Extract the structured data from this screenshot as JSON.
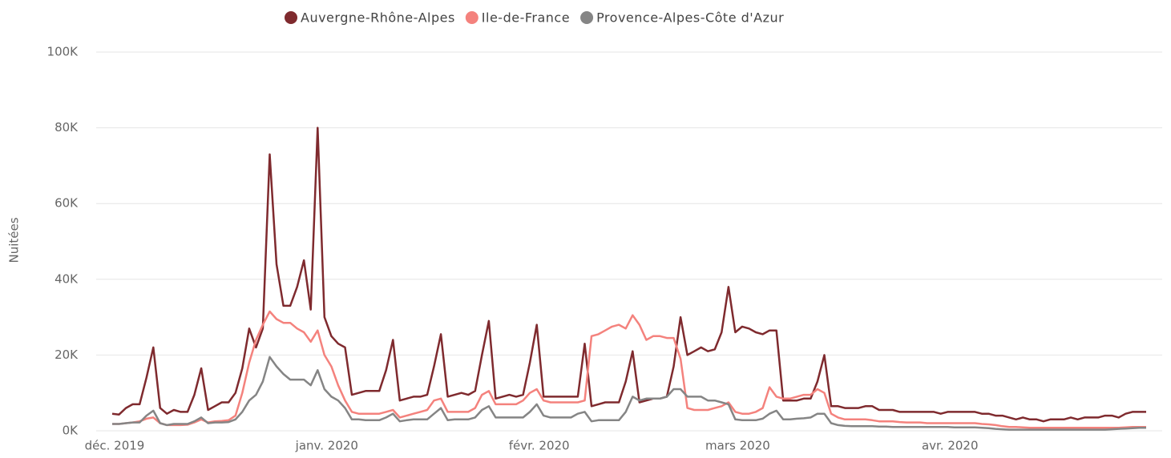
{
  "chart_data": {
    "type": "line",
    "y_label": "Nuitées",
    "categories": [
      "déc. 2019",
      null,
      null,
      null,
      null,
      null,
      null,
      null,
      null,
      null,
      null,
      null,
      null,
      null,
      null,
      null,
      null,
      null,
      null,
      null,
      null,
      null,
      null,
      null,
      null,
      null,
      null,
      null,
      null,
      null,
      null,
      "janv. 2020",
      null,
      null,
      null,
      null,
      null,
      null,
      null,
      null,
      null,
      null,
      null,
      null,
      null,
      null,
      null,
      null,
      null,
      null,
      null,
      null,
      null,
      null,
      null,
      null,
      null,
      null,
      null,
      null,
      null,
      null,
      "févr. 2020",
      null,
      null,
      null,
      null,
      null,
      null,
      null,
      null,
      null,
      null,
      null,
      null,
      null,
      null,
      null,
      null,
      null,
      null,
      null,
      null,
      null,
      null,
      null,
      null,
      null,
      null,
      null,
      null,
      "mars 2020",
      null,
      null,
      null,
      null,
      null,
      null,
      null,
      null,
      null,
      null,
      null,
      null,
      null,
      null,
      null,
      null,
      null,
      null,
      null,
      null,
      null,
      null,
      null,
      null,
      null,
      null,
      null,
      null,
      null,
      null,
      "avr. 2020",
      null,
      null,
      null,
      null,
      null,
      null,
      null,
      null,
      null,
      null,
      null,
      null,
      null,
      null,
      null,
      null,
      null,
      null,
      null,
      null,
      null,
      null,
      null,
      null,
      null,
      null,
      null,
      null,
      null
    ],
    "series": [
      {
        "name": "Auvergne-Rhône-Alpes",
        "color": "#7f2a2e",
        "values": [
          4500,
          4300,
          6000,
          7000,
          7000,
          14000,
          22000,
          6000,
          4500,
          5500,
          5000,
          5000,
          9500,
          16500,
          5500,
          6500,
          7500,
          7500,
          10000,
          16500,
          27000,
          22000,
          27000,
          73000,
          44000,
          33000,
          33000,
          38000,
          45000,
          32000,
          80000,
          30000,
          25000,
          23000,
          22000,
          9500,
          10000,
          10500,
          10500,
          10500,
          16000,
          24000,
          8000,
          8500,
          9000,
          9000,
          9500,
          17000,
          25500,
          9000,
          9500,
          10000,
          9500,
          10500,
          20000,
          29000,
          8500,
          9000,
          9500,
          9000,
          9500,
          18000,
          28000,
          9000,
          9000,
          9000,
          9000,
          9000,
          9000,
          23000,
          6500,
          7000,
          7500,
          7500,
          7500,
          13000,
          21000,
          7500,
          8000,
          8500,
          8500,
          9000,
          17000,
          30000,
          20000,
          21000,
          22000,
          21000,
          21500,
          26000,
          38000,
          26000,
          27500,
          27000,
          26000,
          25500,
          26500,
          26500,
          8000,
          8000,
          8000,
          8500,
          8500,
          13000,
          20000,
          6500,
          6500,
          6000,
          6000,
          6000,
          6500,
          6500,
          5500,
          5500,
          5500,
          5000,
          5000,
          5000,
          5000,
          5000,
          5000,
          4500,
          5000,
          5000,
          5000,
          5000,
          5000,
          4500,
          4500,
          4000,
          4000,
          3500,
          3000,
          3500,
          3000,
          3000,
          2500,
          3000,
          3000,
          3000,
          3500,
          3000,
          3500,
          3500,
          3500,
          4000,
          4000,
          3500,
          4500,
          5000,
          5000,
          5000
        ]
      },
      {
        "name": "Ile-de-France",
        "color": "#f4827d",
        "values": [
          1800,
          1800,
          2000,
          2200,
          2500,
          3200,
          3500,
          2000,
          1500,
          1500,
          1500,
          1600,
          2200,
          3000,
          2200,
          2500,
          2600,
          2800,
          4000,
          10000,
          18000,
          24000,
          28000,
          31500,
          29500,
          28500,
          28500,
          27000,
          26000,
          23500,
          26500,
          20000,
          17000,
          12000,
          8000,
          5000,
          4500,
          4500,
          4500,
          4500,
          5000,
          5500,
          3500,
          4000,
          4500,
          5000,
          5500,
          8000,
          8500,
          5000,
          5000,
          5000,
          5000,
          6000,
          9500,
          10500,
          7000,
          7000,
          7000,
          7000,
          8000,
          10000,
          11000,
          8000,
          7500,
          7500,
          7500,
          7500,
          7500,
          8000,
          25000,
          25500,
          26500,
          27500,
          28000,
          27000,
          30500,
          28000,
          24000,
          25000,
          25000,
          24500,
          24500,
          19000,
          6000,
          5500,
          5500,
          5500,
          6000,
          6500,
          7500,
          5000,
          4500,
          4500,
          5000,
          6000,
          11500,
          9000,
          8500,
          8500,
          9000,
          9500,
          9500,
          11000,
          10000,
          4500,
          3500,
          3000,
          3000,
          3000,
          3000,
          2800,
          2500,
          2500,
          2500,
          2300,
          2200,
          2200,
          2200,
          2000,
          2000,
          2000,
          2000,
          2000,
          2000,
          2000,
          2000,
          1800,
          1700,
          1500,
          1200,
          1000,
          1000,
          900,
          800,
          800,
          800,
          800,
          800,
          800,
          800,
          800,
          800,
          800,
          800,
          800,
          800,
          800,
          900,
          1000,
          1000,
          1000
        ]
      },
      {
        "name": "Provence-Alpes-Côte d'Azur",
        "color": "#858585",
        "values": [
          1800,
          1800,
          2000,
          2200,
          2200,
          4000,
          5300,
          2000,
          1500,
          1800,
          1800,
          1800,
          2500,
          3500,
          2000,
          2200,
          2200,
          2300,
          3000,
          5000,
          8000,
          9500,
          13000,
          19500,
          17000,
          15000,
          13500,
          13500,
          13500,
          12000,
          16000,
          11000,
          9000,
          8000,
          6000,
          3000,
          3000,
          2800,
          2800,
          2800,
          3500,
          4500,
          2500,
          2800,
          3000,
          3000,
          3000,
          4500,
          6000,
          2800,
          3000,
          3000,
          3000,
          3500,
          5500,
          6500,
          3500,
          3500,
          3500,
          3500,
          3500,
          5000,
          7000,
          4000,
          3500,
          3500,
          3500,
          3500,
          4500,
          5000,
          2500,
          2800,
          2800,
          2800,
          2800,
          5000,
          9000,
          8000,
          8500,
          8500,
          8500,
          9000,
          11000,
          11000,
          9000,
          9000,
          9000,
          8000,
          8000,
          7500,
          7000,
          3000,
          2800,
          2800,
          2800,
          3200,
          4500,
          5300,
          3000,
          3000,
          3200,
          3300,
          3500,
          4500,
          4500,
          2000,
          1500,
          1300,
          1200,
          1200,
          1200,
          1200,
          1100,
          1100,
          1000,
          1000,
          1000,
          1000,
          1000,
          1000,
          1000,
          1000,
          1000,
          900,
          900,
          900,
          900,
          800,
          700,
          500,
          400,
          300,
          300,
          300,
          300,
          300,
          300,
          300,
          300,
          300,
          300,
          300,
          300,
          300,
          300,
          300,
          400,
          500,
          600,
          700,
          800,
          800
        ]
      }
    ],
    "ylim": [
      0,
      100000
    ],
    "yticks": [
      {
        "value": 0,
        "label": "0K"
      },
      {
        "value": 20000,
        "label": "20K"
      },
      {
        "value": 40000,
        "label": "40K"
      },
      {
        "value": 60000,
        "label": "60K"
      },
      {
        "value": 80000,
        "label": "80K"
      },
      {
        "value": 100000,
        "label": "100K"
      }
    ],
    "grid": true,
    "legend": "top"
  }
}
